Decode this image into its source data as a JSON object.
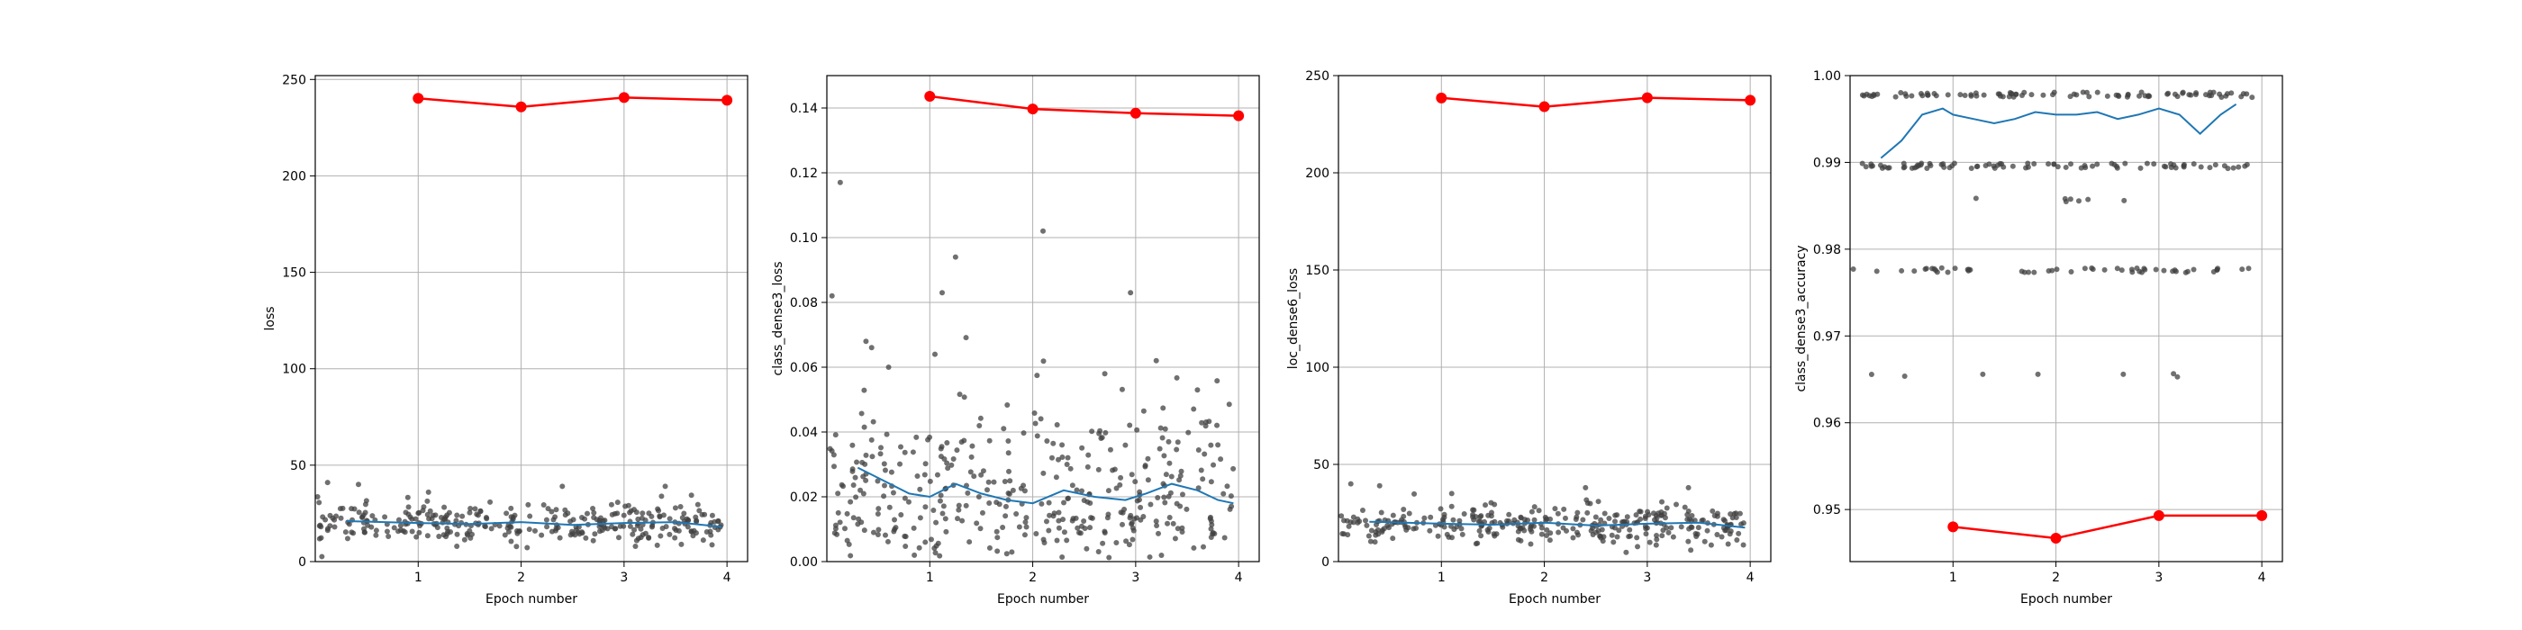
{
  "chart_data": [
    {
      "type": "scatter",
      "xlabel": "Epoch number",
      "ylabel": "loss",
      "xlim": [
        0,
        4.2
      ],
      "ylim": [
        0,
        252
      ],
      "xticks": [
        1,
        2,
        3,
        4
      ],
      "yticks": [
        0,
        50,
        100,
        150,
        200,
        250
      ],
      "ytick_labels": [
        "0",
        "50",
        "100",
        "150",
        "200",
        "250"
      ],
      "grid": true,
      "batch_scatter": {
        "color": "#404040",
        "count": 320,
        "center": 20,
        "spread": 5,
        "outliers": [
          [
            0.12,
            41
          ],
          [
            0.42,
            40
          ],
          [
            2.4,
            39
          ],
          [
            3.4,
            39
          ],
          [
            1.1,
            36
          ]
        ]
      },
      "batch_smooth": {
        "color": "#1f77b4",
        "x": [
          0.3,
          1.0,
          1.5,
          2.0,
          2.5,
          3.0,
          3.5,
          3.95
        ],
        "y": [
          21,
          20,
          19.5,
          20.5,
          19,
          20,
          20.5,
          18
        ]
      },
      "epoch_series": {
        "color": "#ff0000",
        "x": [
          1,
          2,
          3,
          4
        ],
        "y": [
          240.2,
          235.8,
          240.6,
          239.2
        ]
      }
    },
    {
      "type": "scatter",
      "xlabel": "Epoch number",
      "ylabel": "class_dense3_loss",
      "xlim": [
        0,
        4.2
      ],
      "ylim": [
        0,
        0.15
      ],
      "xticks": [
        1,
        2,
        3,
        4
      ],
      "yticks": [
        0,
        0.02,
        0.04,
        0.06,
        0.08,
        0.1,
        0.12,
        0.14
      ],
      "ytick_labels": [
        "0.00",
        "0.02",
        "0.04",
        "0.06",
        "0.08",
        "0.10",
        "0.12",
        "0.14"
      ],
      "grid": true,
      "batch_scatter": {
        "color": "#404040",
        "count": 380,
        "center": 0.02,
        "spread": 0.015,
        "outliers": [
          [
            0.05,
            0.082
          ],
          [
            0.13,
            0.117
          ],
          [
            1.25,
            0.094
          ],
          [
            1.12,
            0.083
          ],
          [
            2.1,
            0.102
          ],
          [
            2.95,
            0.083
          ],
          [
            0.38,
            0.068
          ],
          [
            3.2,
            0.062
          ],
          [
            0.6,
            0.06
          ],
          [
            1.05,
            0.064
          ],
          [
            2.7,
            0.058
          ],
          [
            3.6,
            0.053
          ]
        ]
      },
      "batch_smooth": {
        "color": "#1f77b4",
        "x": [
          0.3,
          0.55,
          0.8,
          1.0,
          1.25,
          1.5,
          1.75,
          2.0,
          2.3,
          2.6,
          2.9,
          3.1,
          3.35,
          3.6,
          3.8,
          3.95
        ],
        "y": [
          0.029,
          0.025,
          0.021,
          0.02,
          0.024,
          0.021,
          0.019,
          0.018,
          0.022,
          0.02,
          0.019,
          0.021,
          0.024,
          0.022,
          0.019,
          0.018
        ]
      },
      "epoch_series": {
        "color": "#ff0000",
        "x": [
          1,
          2,
          3,
          4
        ],
        "y": [
          0.1436,
          0.1397,
          0.1384,
          0.1376
        ]
      }
    },
    {
      "type": "scatter",
      "xlabel": "Epoch number",
      "ylabel": "loc_dense6_loss",
      "xlim": [
        0,
        4.2
      ],
      "ylim": [
        0,
        250
      ],
      "xticks": [
        1,
        2,
        3,
        4
      ],
      "yticks": [
        0,
        50,
        100,
        150,
        200,
        250
      ],
      "ytick_labels": [
        "0",
        "50",
        "100",
        "150",
        "200",
        "250"
      ],
      "grid": true,
      "batch_scatter": {
        "color": "#404040",
        "count": 320,
        "center": 19,
        "spread": 5,
        "outliers": [
          [
            0.12,
            40
          ],
          [
            0.4,
            39
          ],
          [
            2.4,
            38
          ],
          [
            3.4,
            38
          ],
          [
            1.1,
            35
          ]
        ]
      },
      "batch_smooth": {
        "color": "#1f77b4",
        "x": [
          0.3,
          1.0,
          1.5,
          2.0,
          2.5,
          3.0,
          3.5,
          3.95
        ],
        "y": [
          20.5,
          19.5,
          19,
          20,
          18.5,
          19.5,
          20,
          17.5
        ]
      },
      "epoch_series": {
        "color": "#ff0000",
        "x": [
          1,
          2,
          3,
          4
        ],
        "y": [
          238.5,
          234.0,
          238.6,
          237.3
        ]
      }
    },
    {
      "type": "scatter",
      "xlabel": "Epoch number",
      "ylabel": "class_dense3_accuracy",
      "xlim": [
        0,
        4.2
      ],
      "ylim": [
        0.944,
        1.0
      ],
      "xticks": [
        1,
        2,
        3,
        4
      ],
      "yticks": [
        0.95,
        0.96,
        0.97,
        0.98,
        0.99,
        1.0
      ],
      "ytick_labels": [
        "0.95",
        "0.96",
        "0.97",
        "0.98",
        "0.99",
        "1.00"
      ],
      "grid": true,
      "batch_scatter": {
        "color": "#404040",
        "levels": [
          0.9978,
          0.9896,
          0.9776
        ],
        "sparse_levels": [
          0.9857,
          0.9655
        ],
        "count": 260
      },
      "batch_smooth": {
        "color": "#1f77b4",
        "x": [
          0.3,
          0.5,
          0.7,
          0.9,
          1.0,
          1.2,
          1.4,
          1.6,
          1.8,
          2.0,
          2.2,
          2.4,
          2.6,
          2.8,
          3.0,
          3.2,
          3.4,
          3.6,
          3.75
        ],
        "y": [
          0.9905,
          0.9925,
          0.9955,
          0.9962,
          0.9955,
          0.995,
          0.9945,
          0.995,
          0.9958,
          0.9955,
          0.9955,
          0.9958,
          0.995,
          0.9955,
          0.9962,
          0.9955,
          0.9933,
          0.9955,
          0.9967
        ]
      },
      "epoch_series": {
        "color": "#ff0000",
        "x": [
          1,
          2,
          3,
          4
        ],
        "y": [
          0.948,
          0.9467,
          0.9493,
          0.9493
        ]
      }
    }
  ]
}
